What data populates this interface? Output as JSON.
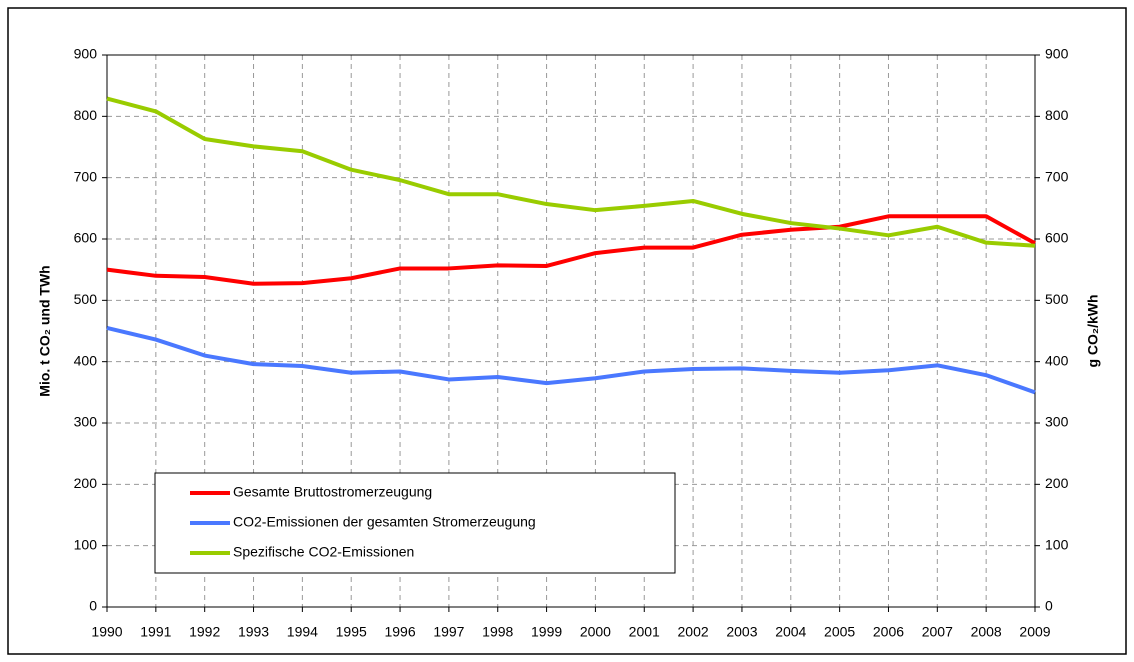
{
  "chart_data": {
    "type": "line",
    "ylabel": "Mio. t CO₂ und TWh",
    "y2label": "g CO₂/kWh",
    "x": [
      1990,
      1991,
      1992,
      1993,
      1994,
      1995,
      1996,
      1997,
      1998,
      1999,
      2000,
      2001,
      2002,
      2003,
      2004,
      2005,
      2006,
      2007,
      2008,
      2009
    ],
    "xlim": [
      1990,
      2009
    ],
    "ylim": [
      0,
      900
    ],
    "yticks": [
      0,
      100,
      200,
      300,
      400,
      500,
      600,
      700,
      800,
      900
    ],
    "y2lim": [
      0,
      900
    ],
    "y2ticks": [
      0,
      100,
      200,
      300,
      400,
      500,
      600,
      700,
      800,
      900
    ],
    "grid": true,
    "legend": "lower left",
    "series": [
      {
        "name": "Gesamte Bruttostromerzeugung",
        "color": "#ff0000",
        "values": [
          550,
          540,
          538,
          527,
          528,
          536,
          552,
          552,
          557,
          556,
          577,
          586,
          586,
          607,
          615,
          620,
          637,
          637,
          637,
          593
        ]
      },
      {
        "name": "CO2-Emissionen der gesamten Stromerzeugung",
        "color": "#4a78ff",
        "values": [
          455,
          436,
          410,
          396,
          393,
          382,
          384,
          371,
          375,
          365,
          373,
          384,
          388,
          389,
          385,
          382,
          386,
          394,
          378,
          350
        ]
      },
      {
        "name": "Spezifische CO2-Emissionen",
        "color": "#99cc00",
        "axis": "y2",
        "values": [
          829,
          808,
          763,
          751,
          743,
          713,
          696,
          673,
          673,
          657,
          647,
          654,
          662,
          641,
          626,
          617,
          606,
          620,
          594,
          589
        ]
      }
    ]
  }
}
